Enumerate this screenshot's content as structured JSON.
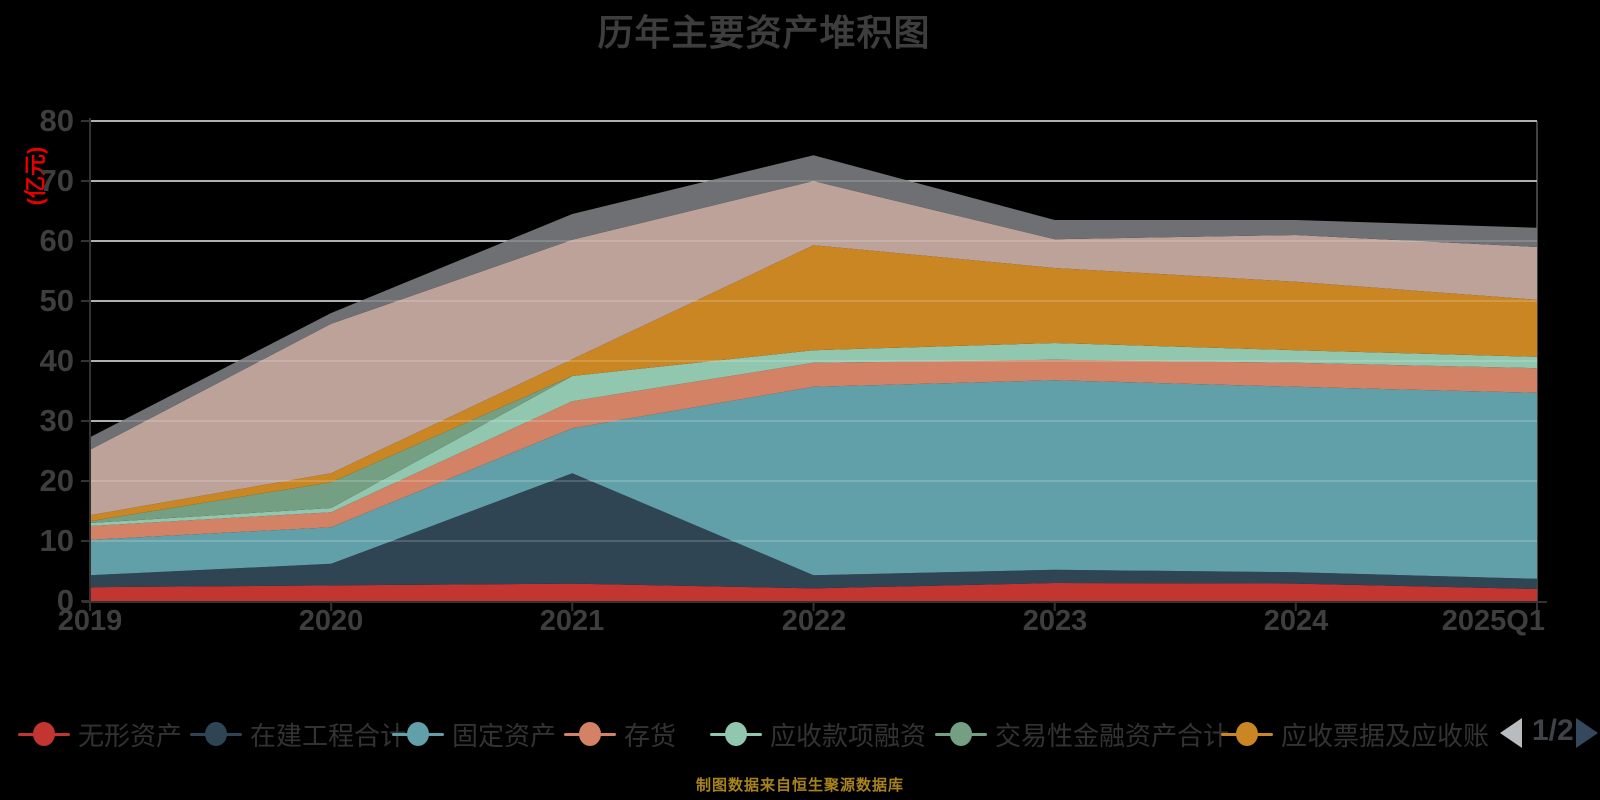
{
  "title": "历年主要资产堆积图",
  "y_axis": {
    "unit_label": "(亿元)",
    "tick_labels": [
      "0",
      "10",
      "20",
      "30",
      "40",
      "50",
      "60",
      "70",
      "80"
    ]
  },
  "x_axis": {
    "tick_labels": [
      "2019",
      "2020",
      "2021",
      "2022",
      "2023",
      "2024",
      "2025Q1"
    ]
  },
  "legend": {
    "items": [
      {
        "label": "无形资产",
        "color": "#c23531"
      },
      {
        "label": "在建工程合计",
        "color": "#2f4554"
      },
      {
        "label": "固定资产",
        "color": "#61a0a8"
      },
      {
        "label": "存货",
        "color": "#d48265"
      },
      {
        "label": "应收款项融资",
        "color": "#91c7ae"
      },
      {
        "label": "交易性金融资产合计",
        "color": "#749f83"
      },
      {
        "label": "应收票据及应收账",
        "color": "#ca8622"
      }
    ],
    "pagination": {
      "label": "1/2",
      "prev_arrow_color": "#b9bcbe",
      "next_arrow_color": "#35495e"
    }
  },
  "chart_data": {
    "type": "area",
    "stacked": true,
    "title": "历年主要资产堆积图",
    "ylabel": "(亿元)",
    "ylim": [
      0,
      80
    ],
    "y_tick_step": 10,
    "grid": true,
    "legend_position": "bottom",
    "categories": [
      "2019",
      "2020",
      "2021",
      "2022",
      "2023",
      "2024",
      "2025Q1"
    ],
    "series": [
      {
        "name": "无形资产",
        "color": "#c23531",
        "values": [
          2.3,
          2.6,
          2.9,
          2.1,
          3.0,
          2.9,
          2.0
        ]
      },
      {
        "name": "在建工程合计",
        "color": "#2f4554",
        "values": [
          2.0,
          3.6,
          18.4,
          2.2,
          2.2,
          1.9,
          1.7
        ]
      },
      {
        "name": "固定资产",
        "color": "#61a0a8",
        "values": [
          5.9,
          6.1,
          7.5,
          31.4,
          31.6,
          30.9,
          31.0
        ]
      },
      {
        "name": "存货",
        "color": "#d48265",
        "values": [
          2.3,
          2.5,
          4.5,
          4.0,
          3.4,
          4.0,
          4.1
        ]
      },
      {
        "name": "应收款项融资",
        "color": "#91c7ae",
        "values": [
          0.5,
          0.7,
          4.2,
          2.1,
          2.8,
          2.1,
          1.9
        ]
      },
      {
        "name": "交易性金融资产合计",
        "color": "#749f83",
        "values": [
          0.3,
          4.3,
          0,
          0,
          0,
          0,
          0
        ]
      },
      {
        "name": "应收票据及应收账",
        "color": "#ca8622",
        "values": [
          1.0,
          1.5,
          2.8,
          17.5,
          12.5,
          11.4,
          9.5
        ]
      },
      {
        "name": "",
        "color": "#bda29a",
        "values": [
          10.9,
          24.9,
          19.9,
          10.7,
          4.8,
          7.8,
          8.8
        ]
      },
      {
        "name": "",
        "color": "#6e7074",
        "values": [
          2.1,
          1.8,
          4.3,
          4.3,
          3.2,
          2.5,
          3.2
        ]
      }
    ]
  },
  "footer": {
    "source_note": "制图数据来自恒生聚源数据库"
  },
  "colors": {
    "background": "#000000",
    "title_text": "#3d3d3d",
    "axis_text": "#3e3e3e",
    "axis_line": "#333333",
    "gridline": "#d9d9d9",
    "unit_label_text": "#e60000",
    "legend_text": "#333333",
    "footer_text": "#a8831d"
  }
}
